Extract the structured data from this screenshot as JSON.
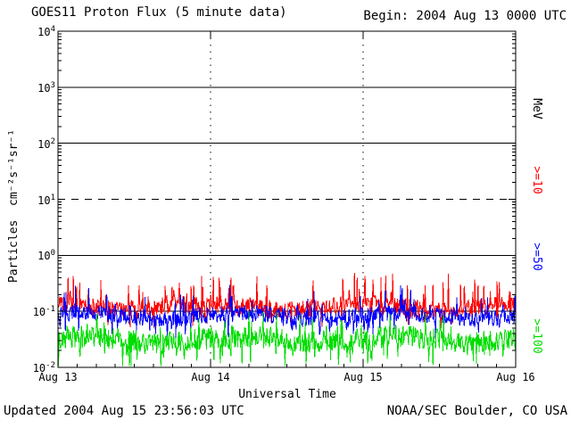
{
  "header": {
    "title": "GOES11 Proton Flux (5 minute data)",
    "begin_label": "Begin: 2004 Aug 13 0000 UTC"
  },
  "footer": {
    "updated": "Updated 2004 Aug 15 23:56:03 UTC",
    "credit": "NOAA/SEC Boulder, CO USA"
  },
  "chart_data": {
    "type": "line",
    "title": "GOES11 Proton Flux (5 minute data)",
    "xlabel": "Universal Time",
    "ylabel": "Particles  cm⁻²s⁻¹sr⁻¹",
    "units_label": "MeV",
    "x_tick_labels": [
      "Aug 13",
      "Aug 14",
      "Aug 15",
      "Aug 16"
    ],
    "x_range_days": 3,
    "points_per_day": 288,
    "y_scale": "log10",
    "y_exponents": [
      4,
      3,
      2,
      1,
      0,
      -1,
      -2
    ],
    "ylim": [
      0.01,
      10000
    ],
    "gridlines": {
      "solid_at_log10": [
        3,
        2,
        0,
        -1
      ],
      "dashed_at_log10": [
        1
      ],
      "vertical_dotted_at_day": [
        1,
        2
      ]
    },
    "seed": 20040813,
    "series": [
      {
        "name": "Protons >=10 MeV",
        "label": ">=10",
        "color": "#ff0000",
        "approx_median_flux": 0.12,
        "approx_range_flux": [
          0.06,
          0.45
        ],
        "base_log10": -0.92,
        "jitter_log10": 0.16,
        "spike_prob": 0.1,
        "spike_log10": 0.5,
        "dip_prob": 0.05,
        "dip_log10": 0.28
      },
      {
        "name": "Protons >=50 MeV",
        "label": ">=50",
        "color": "#0000ff",
        "approx_median_flux": 0.083,
        "approx_range_flux": [
          0.04,
          0.3
        ],
        "base_log10": -1.08,
        "jitter_log10": 0.15,
        "spike_prob": 0.06,
        "spike_log10": 0.45,
        "dip_prob": 0.07,
        "dip_log10": 0.3
      },
      {
        "name": "Protons >=100 MeV",
        "label": ">=100",
        "color": "#00dd00",
        "approx_median_flux": 0.032,
        "approx_range_flux": [
          0.011,
          0.09
        ],
        "base_log10": -1.5,
        "jitter_log10": 0.2,
        "spike_prob": 0.05,
        "spike_log10": 0.35,
        "dip_prob": 0.1,
        "dip_log10": 0.38
      }
    ]
  }
}
